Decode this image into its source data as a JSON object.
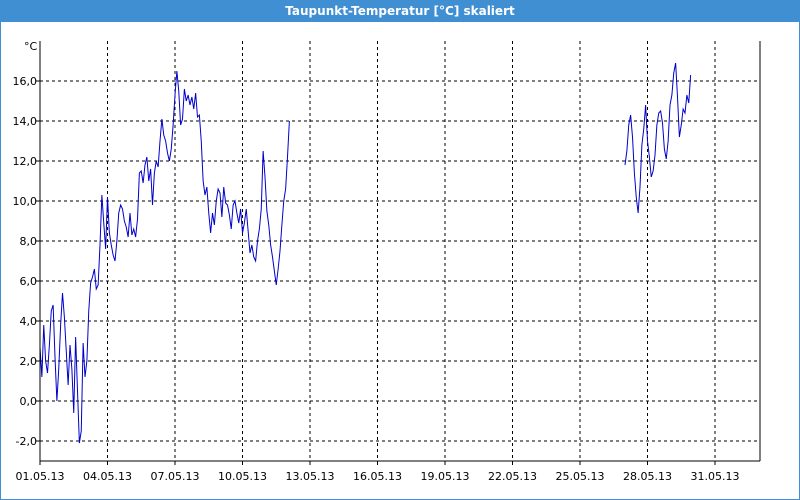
{
  "window": {
    "title": "Taupunkt-Temperatur [°C] skaliert",
    "accent": "#3f8fd2"
  },
  "chart_data": {
    "type": "line",
    "title": "Taupunkt-Temperatur [°C] skaliert",
    "ylabel": "°C",
    "xlabel": "",
    "ylim": [
      -3,
      18
    ],
    "xlim": [
      "01.05.13",
      "02.06.13"
    ],
    "grid": true,
    "line_color": "#0000cc",
    "y_ticks": [
      "-2,0",
      "0,0",
      "2,0",
      "4,0",
      "6,0",
      "8,0",
      "10,0",
      "12,0",
      "14,0",
      "16,0"
    ],
    "x_ticks": [
      "01.05.13",
      "04.05.13",
      "07.05.13",
      "10.05.13",
      "13.05.13",
      "16.05.13",
      "19.05.13",
      "22.05.13",
      "25.05.13",
      "28.05.13",
      "31.05.13"
    ],
    "series": [
      {
        "segments": [
          [
            [
              "01.05.13 00:00",
              2.7
            ],
            [
              "01.05.13 02:00",
              1.2
            ],
            [
              "01.05.13 04:00",
              3.8
            ],
            [
              "01.05.13 06:00",
              2.0
            ],
            [
              "01.05.13 08:00",
              1.4
            ],
            [
              "01.05.13 10:00",
              2.8
            ],
            [
              "01.05.13 12:00",
              4.5
            ],
            [
              "01.05.13 14:00",
              4.8
            ],
            [
              "01.05.13 16:00",
              2.2
            ],
            [
              "01.05.13 18:00",
              0.0
            ],
            [
              "01.05.13 20:00",
              1.6
            ],
            [
              "01.05.13 22:00",
              3.8
            ],
            [
              "02.05.13 00:00",
              5.4
            ],
            [
              "02.05.13 02:00",
              4.2
            ],
            [
              "02.05.13 04:00",
              2.5
            ],
            [
              "02.05.13 06:00",
              0.8
            ],
            [
              "02.05.13 08:00",
              2.8
            ],
            [
              "02.05.13 10:00",
              1.6
            ],
            [
              "02.05.13 12:00",
              -0.6
            ],
            [
              "02.05.13 14:00",
              3.2
            ],
            [
              "02.05.13 16:00",
              0.5
            ],
            [
              "02.05.13 18:00",
              -2.1
            ],
            [
              "02.05.13 20:00",
              -1.5
            ],
            [
              "02.05.13 22:00",
              2.9
            ],
            [
              "03.05.13 00:00",
              1.2
            ],
            [
              "03.05.13 02:00",
              2.0
            ],
            [
              "03.05.13 04:00",
              4.5
            ],
            [
              "03.05.13 06:00",
              5.9
            ],
            [
              "03.05.13 08:00",
              6.2
            ],
            [
              "03.05.13 10:00",
              6.6
            ],
            [
              "03.05.13 12:00",
              5.6
            ],
            [
              "03.05.13 14:00",
              5.8
            ],
            [
              "03.05.13 16:00",
              7.8
            ],
            [
              "03.05.13 18:00",
              10.3
            ],
            [
              "03.05.13 20:00",
              8.9
            ],
            [
              "03.05.13 22:00",
              7.6
            ],
            [
              "04.05.13 00:00",
              10.2
            ],
            [
              "04.05.13 02:00",
              8.4
            ],
            [
              "04.05.13 04:00",
              7.8
            ],
            [
              "04.05.13 06:00",
              7.3
            ],
            [
              "04.05.13 08:00",
              7.0
            ],
            [
              "04.05.13 10:00",
              8.0
            ],
            [
              "04.05.13 12:00",
              9.4
            ],
            [
              "04.05.13 14:00",
              9.8
            ],
            [
              "04.05.13 16:00",
              9.6
            ],
            [
              "04.05.13 18:00",
              9.0
            ],
            [
              "04.05.13 20:00",
              8.7
            ],
            [
              "04.05.13 22:00",
              8.2
            ],
            [
              "05.05.13 00:00",
              9.4
            ],
            [
              "05.05.13 02:00",
              8.3
            ],
            [
              "05.05.13 04:00",
              8.6
            ],
            [
              "05.05.13 06:00",
              8.2
            ],
            [
              "05.05.13 08:00",
              9.1
            ],
            [
              "05.05.13 10:00",
              11.4
            ],
            [
              "05.05.13 12:00",
              11.5
            ],
            [
              "05.05.13 14:00",
              10.9
            ],
            [
              "05.05.13 16:00",
              11.8
            ],
            [
              "05.05.13 18:00",
              12.2
            ],
            [
              "05.05.13 20:00",
              11.0
            ],
            [
              "05.05.13 22:00",
              11.6
            ],
            [
              "06.05.13 00:00",
              9.8
            ],
            [
              "06.05.13 02:00",
              11.4
            ],
            [
              "06.05.13 04:00",
              12.0
            ],
            [
              "06.05.13 06:00",
              11.7
            ],
            [
              "06.05.13 08:00",
              13.0
            ],
            [
              "06.05.13 10:00",
              14.1
            ],
            [
              "06.05.13 12:00",
              13.3
            ],
            [
              "06.05.13 14:00",
              13.0
            ],
            [
              "06.05.13 16:00",
              12.4
            ],
            [
              "06.05.13 18:00",
              12.0
            ],
            [
              "06.05.13 20:00",
              12.6
            ],
            [
              "06.05.13 22:00",
              13.8
            ],
            [
              "07.05.13 00:00",
              15.3
            ],
            [
              "07.05.13 02:00",
              16.5
            ],
            [
              "07.05.13 04:00",
              15.5
            ],
            [
              "07.05.13 06:00",
              13.8
            ],
            [
              "07.05.13 08:00",
              14.1
            ],
            [
              "07.05.13 10:00",
              15.6
            ],
            [
              "07.05.13 12:00",
              15.0
            ],
            [
              "07.05.13 14:00",
              15.3
            ],
            [
              "07.05.13 16:00",
              14.8
            ],
            [
              "07.05.13 18:00",
              15.2
            ],
            [
              "07.05.13 20:00",
              14.6
            ],
            [
              "07.05.13 22:00",
              15.4
            ],
            [
              "08.05.13 00:00",
              14.2
            ],
            [
              "08.05.13 02:00",
              14.3
            ],
            [
              "08.05.13 04:00",
              13.0
            ],
            [
              "08.05.13 06:00",
              11.0
            ],
            [
              "08.05.13 08:00",
              10.3
            ],
            [
              "08.05.13 10:00",
              10.7
            ],
            [
              "08.05.13 12:00",
              9.4
            ],
            [
              "08.05.13 14:00",
              8.4
            ],
            [
              "08.05.13 16:00",
              9.4
            ],
            [
              "08.05.13 18:00",
              8.8
            ],
            [
              "08.05.13 20:00",
              10.0
            ],
            [
              "08.05.13 22:00",
              10.6
            ],
            [
              "09.05.13 00:00",
              10.4
            ],
            [
              "09.05.13 02:00",
              9.2
            ],
            [
              "09.05.13 04:00",
              10.7
            ],
            [
              "09.05.13 06:00",
              9.9
            ],
            [
              "09.05.13 08:00",
              9.8
            ],
            [
              "09.05.13 10:00",
              9.3
            ],
            [
              "09.05.13 12:00",
              8.6
            ],
            [
              "09.05.13 14:00",
              9.8
            ],
            [
              "09.05.13 16:00",
              10.0
            ],
            [
              "09.05.13 18:00",
              9.4
            ],
            [
              "09.05.13 20:00",
              8.9
            ],
            [
              "09.05.13 22:00",
              9.6
            ],
            [
              "10.05.13 00:00",
              8.4
            ],
            [
              "10.05.13 02:00",
              8.9
            ],
            [
              "10.05.13 04:00",
              9.6
            ],
            [
              "10.05.13 06:00",
              8.5
            ],
            [
              "10.05.13 08:00",
              7.4
            ],
            [
              "10.05.13 10:00",
              7.8
            ],
            [
              "10.05.13 12:00",
              7.2
            ],
            [
              "10.05.13 14:00",
              7.0
            ],
            [
              "10.05.13 16:00",
              8.0
            ],
            [
              "10.05.13 18:00",
              8.6
            ],
            [
              "10.05.13 20:00",
              9.6
            ],
            [
              "10.05.13 22:00",
              12.5
            ],
            [
              "11.05.13 00:00",
              11.2
            ],
            [
              "11.05.13 02:00",
              9.5
            ],
            [
              "11.05.13 04:00",
              8.8
            ],
            [
              "11.05.13 06:00",
              7.8
            ],
            [
              "11.05.13 08:00",
              7.2
            ],
            [
              "11.05.13 10:00",
              6.5
            ],
            [
              "11.05.13 12:00",
              5.8
            ],
            [
              "11.05.13 14:00",
              6.6
            ],
            [
              "11.05.13 16:00",
              7.5
            ],
            [
              "11.05.13 18:00",
              8.8
            ],
            [
              "11.05.13 20:00",
              10.0
            ],
            [
              "11.05.13 22:00",
              10.6
            ],
            [
              "12.05.13 00:00",
              12.2
            ],
            [
              "12.05.13 02:00",
              14.0
            ]
          ],
          [
            [
              "27.05.13 00:00",
              11.8
            ],
            [
              "27.05.13 02:00",
              12.5
            ],
            [
              "27.05.13 04:00",
              13.8
            ],
            [
              "27.05.13 06:00",
              14.3
            ],
            [
              "27.05.13 08:00",
              13.2
            ],
            [
              "27.05.13 10:00",
              11.4
            ],
            [
              "27.05.13 12:00",
              10.2
            ],
            [
              "27.05.13 14:00",
              9.4
            ],
            [
              "27.05.13 16:00",
              10.7
            ],
            [
              "27.05.13 18:00",
              12.8
            ],
            [
              "27.05.13 20:00",
              13.6
            ],
            [
              "27.05.13 22:00",
              14.8
            ],
            [
              "28.05.13 00:00",
              13.0
            ],
            [
              "28.05.13 02:00",
              12.2
            ],
            [
              "28.05.13 04:00",
              11.2
            ],
            [
              "28.05.13 06:00",
              11.5
            ],
            [
              "28.05.13 08:00",
              12.3
            ],
            [
              "28.05.13 10:00",
              13.8
            ],
            [
              "28.05.13 12:00",
              14.4
            ],
            [
              "28.05.13 14:00",
              14.5
            ],
            [
              "28.05.13 16:00",
              13.9
            ],
            [
              "28.05.13 18:00",
              12.6
            ],
            [
              "28.05.13 20:00",
              12.1
            ],
            [
              "28.05.13 22:00",
              13.0
            ],
            [
              "29.05.13 00:00",
              14.8
            ],
            [
              "29.05.13 02:00",
              15.3
            ],
            [
              "29.05.13 04:00",
              16.4
            ],
            [
              "29.05.13 06:00",
              16.9
            ],
            [
              "29.05.13 08:00",
              15.2
            ],
            [
              "29.05.13 10:00",
              13.2
            ],
            [
              "29.05.13 12:00",
              13.8
            ],
            [
              "29.05.13 14:00",
              14.6
            ],
            [
              "29.05.13 16:00",
              14.4
            ],
            [
              "29.05.13 18:00",
              15.3
            ],
            [
              "29.05.13 20:00",
              14.9
            ],
            [
              "29.05.13 22:00",
              16.3
            ]
          ]
        ]
      }
    ]
  }
}
